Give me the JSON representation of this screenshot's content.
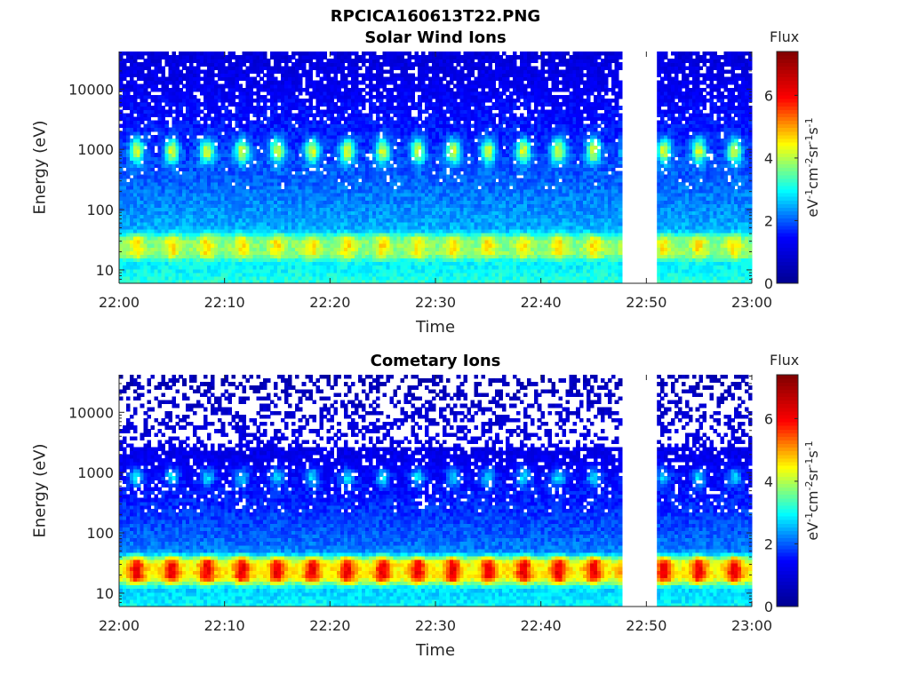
{
  "figure": {
    "title": "RPCICA160613T22.PNG"
  },
  "colormap": {
    "name": "jet",
    "stops": [
      "#00008f",
      "#0000ff",
      "#00ffff",
      "#ffff00",
      "#ff0000",
      "#800000"
    ]
  },
  "chart_data": [
    {
      "type": "heatmap",
      "title": "Solar Wind Ions",
      "xlabel": "Time",
      "ylabel": "Energy (eV)",
      "x_range": [
        "22:00",
        "23:00"
      ],
      "xticks": [
        "22:00",
        "22:10",
        "22:20",
        "22:30",
        "22:40",
        "22:50",
        "23:00"
      ],
      "y_scale": "log",
      "y_range": [
        6,
        42000
      ],
      "yticks": [
        "10",
        "100",
        "1000",
        "10000"
      ],
      "data_gap": [
        "22:47.8",
        "22:51.0"
      ],
      "colorbar": {
        "title": "Flux",
        "units": "eV-1cm-2sr-1s-1",
        "range": [
          0,
          7.4
        ],
        "ticks": [
          "0",
          "2",
          "4",
          "6"
        ]
      },
      "features": {
        "low_energy_band": {
          "energy_range_eV": [
            15,
            40
          ],
          "peak_flux": 4.6,
          "bursts_per_hour": 18
        },
        "mid_energy_band": {
          "energy_range_eV": [
            600,
            1500
          ],
          "peak_flux": 4.3,
          "bursts_per_hour": 18
        },
        "background_flux": {
          "high_energy": 1.0,
          "low_energy": 3.2
        }
      }
    },
    {
      "type": "heatmap",
      "title": "Cometary Ions",
      "xlabel": "Time",
      "ylabel": "Energy (eV)",
      "x_range": [
        "22:00",
        "23:00"
      ],
      "xticks": [
        "22:00",
        "22:10",
        "22:20",
        "22:30",
        "22:40",
        "22:50",
        "23:00"
      ],
      "y_scale": "log",
      "y_range": [
        6,
        42000
      ],
      "yticks": [
        "10",
        "100",
        "1000",
        "10000"
      ],
      "data_gap": [
        "22:47.8",
        "22:51.0"
      ],
      "colorbar": {
        "title": "Flux",
        "units": "eV-1cm-2sr-1s-1",
        "range": [
          0,
          7.4
        ],
        "ticks": [
          "0",
          "2",
          "4",
          "6"
        ]
      },
      "features": {
        "low_energy_band": {
          "energy_range_eV": [
            14,
            42
          ],
          "peak_flux": 6.2,
          "bursts_per_hour": 18
        },
        "mid_energy_band": {
          "energy_range_eV": [
            600,
            1200
          ],
          "peak_flux": 2.8,
          "bursts_per_hour": 18
        },
        "background_flux": {
          "high_energy": 0.5,
          "low_energy": 3.0
        }
      }
    }
  ]
}
